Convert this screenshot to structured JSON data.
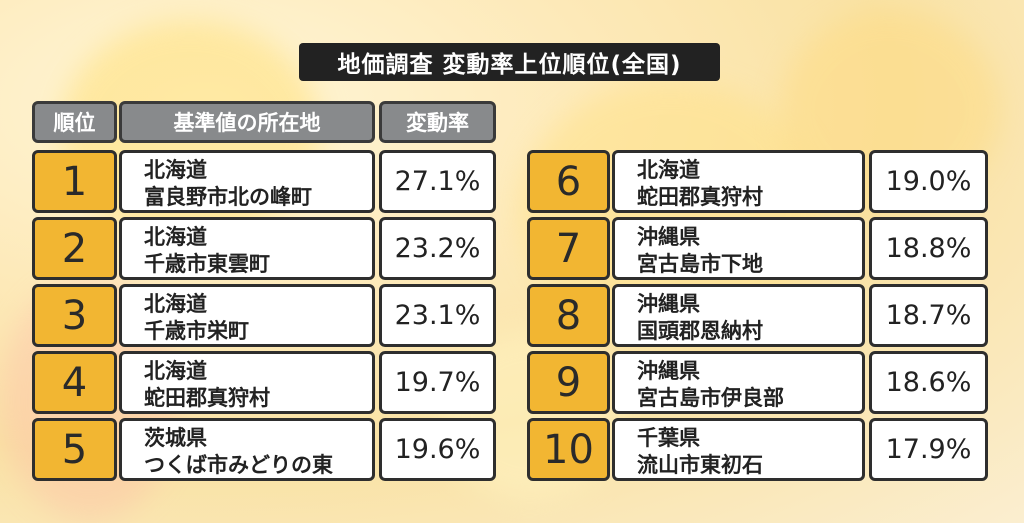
{
  "title": "地価調査 変動率上位順位(全国)",
  "headers": {
    "rank": "順位",
    "location": "基準値の所在地",
    "rate": "変動率"
  },
  "rows": [
    {
      "rank": "1",
      "pref": "北海道",
      "place": "富良野市北の峰町",
      "rate": "27.1%"
    },
    {
      "rank": "2",
      "pref": "北海道",
      "place": "千歳市東雲町",
      "rate": "23.2%"
    },
    {
      "rank": "3",
      "pref": "北海道",
      "place": "千歳市栄町",
      "rate": "23.1%"
    },
    {
      "rank": "4",
      "pref": "北海道",
      "place": "蛇田郡真狩村",
      "rate": "19.7%"
    },
    {
      "rank": "5",
      "pref": "茨城県",
      "place": "つくば市みどりの東",
      "rate": "19.6%"
    },
    {
      "rank": "6",
      "pref": "北海道",
      "place": "蛇田郡真狩村",
      "rate": "19.0%"
    },
    {
      "rank": "7",
      "pref": "沖縄県",
      "place": "宮古島市下地",
      "rate": "18.8%"
    },
    {
      "rank": "8",
      "pref": "沖縄県",
      "place": "国頭郡恩納村",
      "rate": "18.7%"
    },
    {
      "rank": "9",
      "pref": "沖縄県",
      "place": "宮古島市伊良部",
      "rate": "18.6%"
    },
    {
      "rank": "10",
      "pref": "千葉県",
      "place": "流山市東初石",
      "rate": "17.9%"
    }
  ],
  "colors": {
    "rank_bg": "#f2b632",
    "header_bg": "#888a8c",
    "title_bg": "#222222",
    "border": "#2e2e2e"
  }
}
